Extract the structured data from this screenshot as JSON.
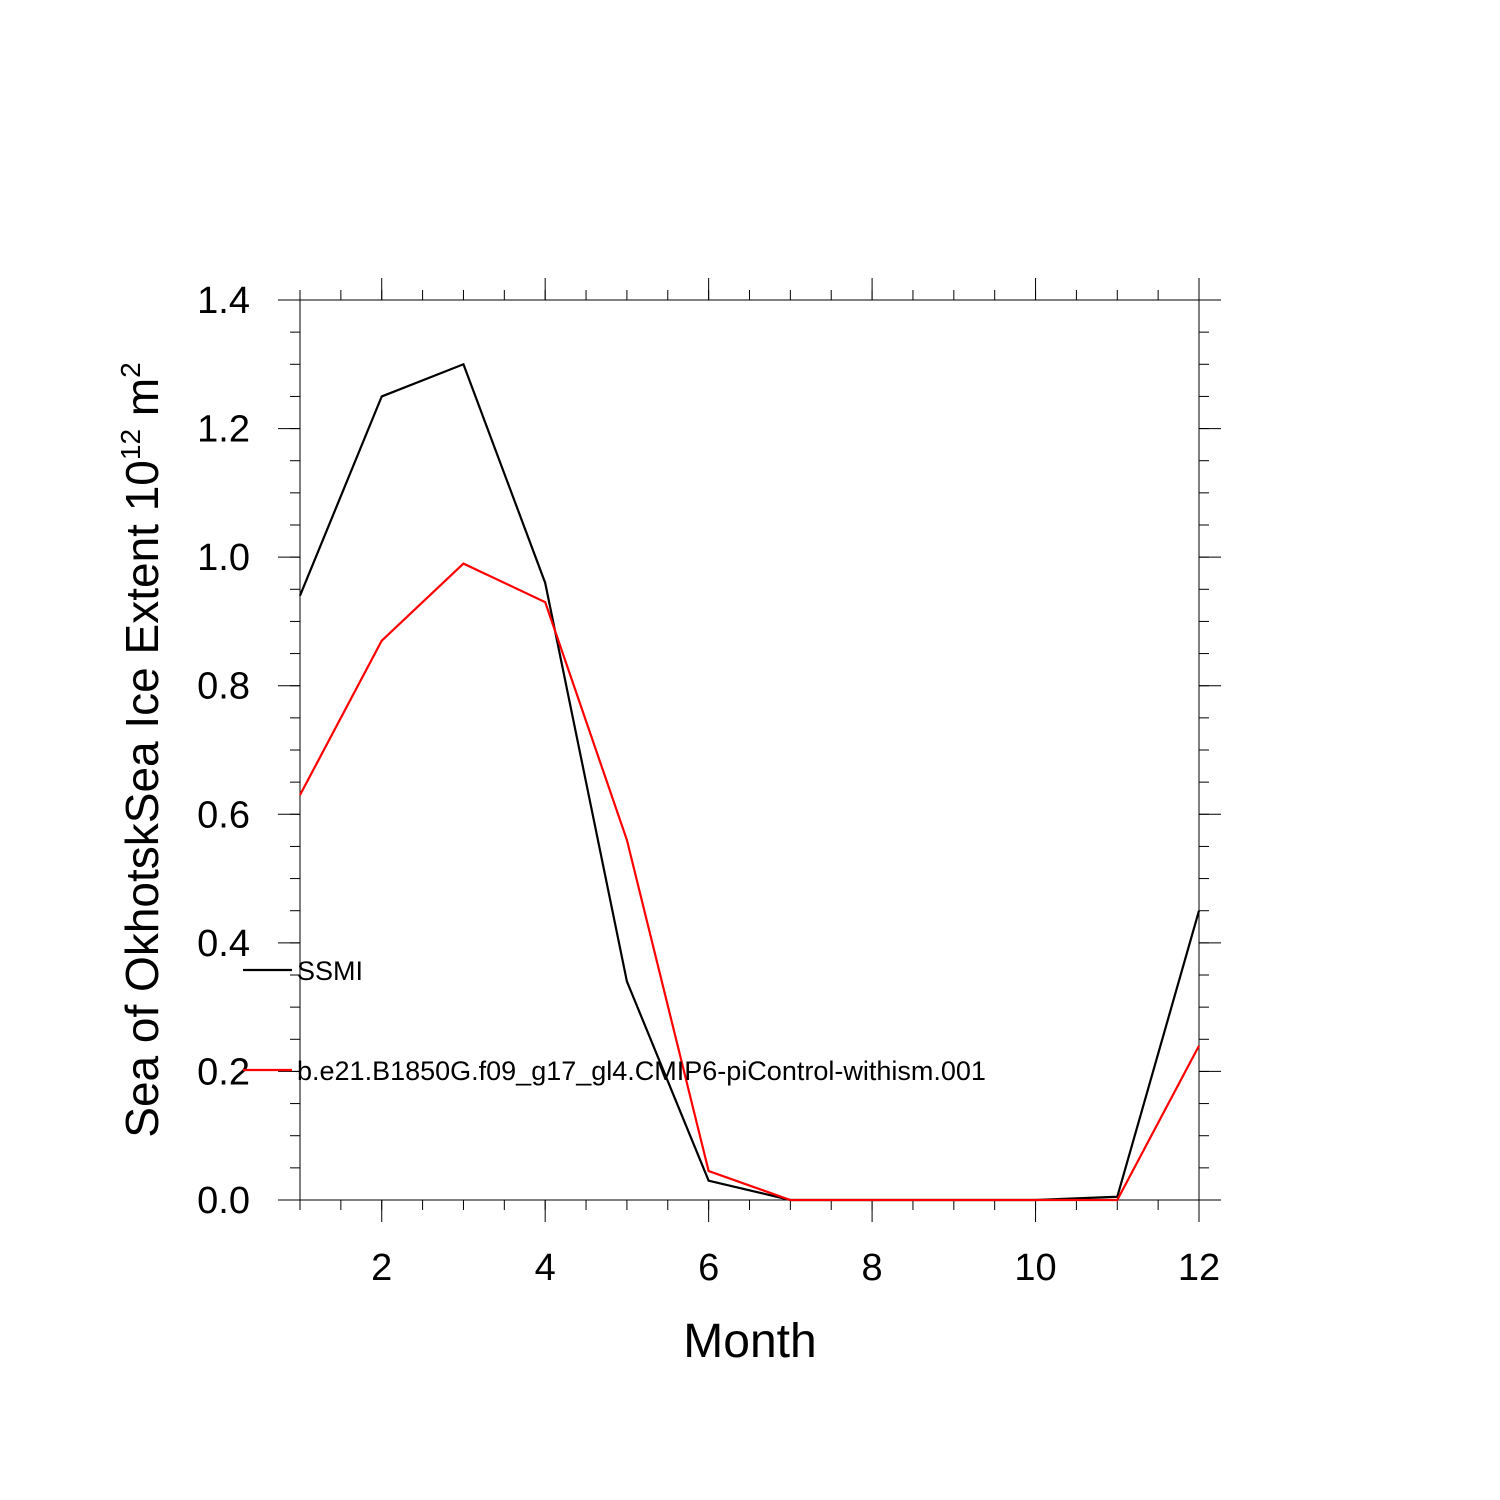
{
  "chart_data": {
    "type": "line",
    "title": "",
    "xlabel": "Month",
    "ylabel_main": "Sea of OkhotskSea Ice Extent 10",
    "ylabel_exponent": "12",
    "ylabel_unit": " m",
    "ylabel_unit_exponent": "2",
    "xlim": [
      1,
      12
    ],
    "ylim": [
      0,
      1.4
    ],
    "x_ticks": [
      2,
      4,
      6,
      8,
      10,
      12
    ],
    "x_tick_labels": [
      "2",
      "4",
      "6",
      "8",
      "10",
      "12"
    ],
    "y_ticks": [
      0,
      0.2,
      0.4,
      0.6,
      0.8,
      1.0,
      1.2,
      1.4
    ],
    "y_tick_labels": [
      "0.0",
      "0.2",
      "0.4",
      "0.6",
      "0.8",
      "1.0",
      "1.2",
      "1.4"
    ],
    "grid": false,
    "legend_position": "lower-left inside",
    "x": [
      1,
      2,
      3,
      4,
      5,
      6,
      7,
      8,
      9,
      10,
      11,
      12
    ],
    "series": [
      {
        "name": "SSMI",
        "color": "#000000",
        "values": [
          0.94,
          1.25,
          1.3,
          0.96,
          0.34,
          0.03,
          0.0,
          0.0,
          0.0,
          0.0,
          0.005,
          0.45
        ]
      },
      {
        "name": "b.e21.B1850G.f09_g17_gl4.CMIP6-piControl-withism.001",
        "color": "#ff0000",
        "values": [
          0.63,
          0.87,
          0.99,
          0.93,
          0.56,
          0.045,
          0.0,
          0.0,
          0.0,
          0.0,
          0.0,
          0.24
        ]
      }
    ]
  }
}
